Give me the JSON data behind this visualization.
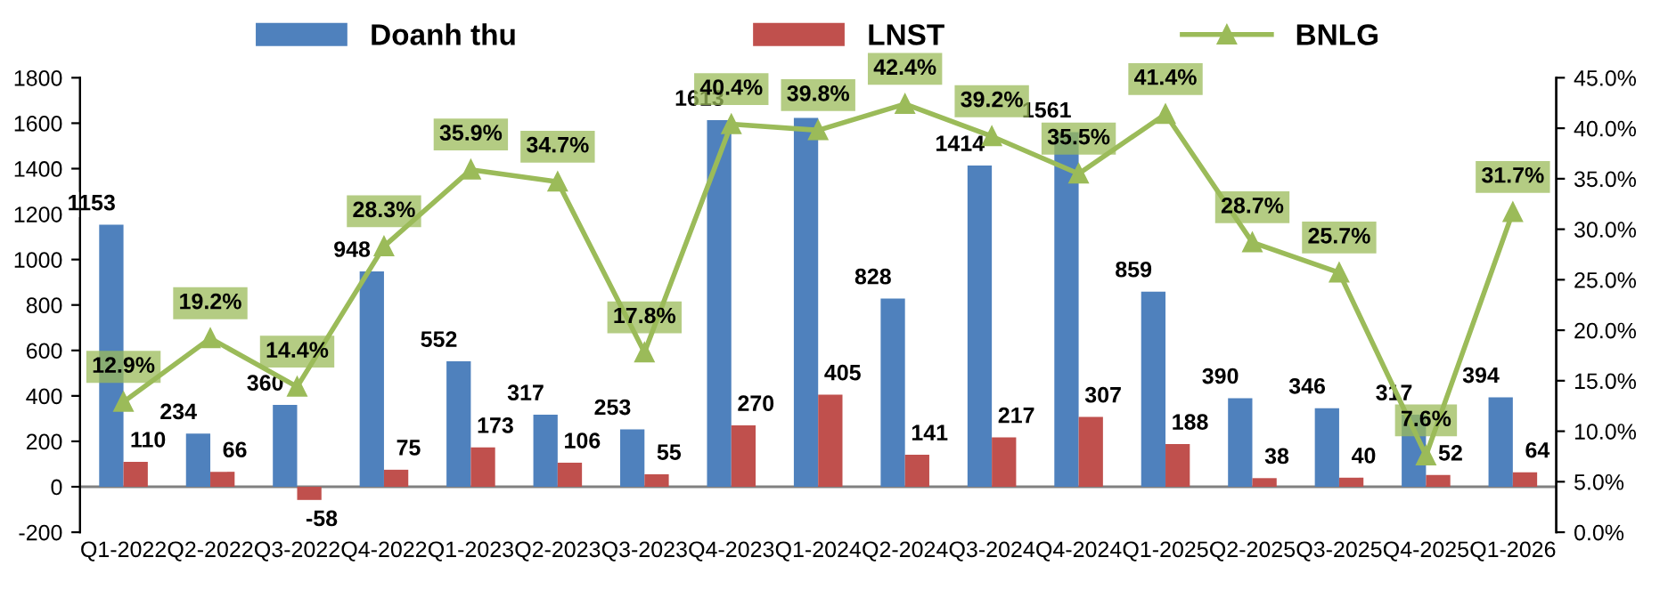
{
  "chart_data": {
    "type": "bar",
    "categories": [
      "Q1-2022",
      "Q2-2022",
      "Q3-2022",
      "Q4-2022",
      "Q1-2023",
      "Q2-2023",
      "Q3-2023",
      "Q4-2023",
      "Q1-2024",
      "Q2-2024",
      "Q3-2024",
      "Q4-2024",
      "Q1-2025",
      "Q2-2025",
      "Q3-2025",
      "Q4-2025",
      "Q1-2026"
    ],
    "series": [
      {
        "name": "Doanh thu",
        "color": "#4f81bd",
        "values": [
          1153,
          234,
          360,
          948,
          552,
          317,
          253,
          1613,
          1623,
          828,
          1414,
          1561,
          859,
          390,
          346,
          317,
          394
        ],
        "value_labels": [
          "1153",
          "234",
          "360",
          "948",
          "552",
          "317",
          "253",
          "1613",
          null,
          "828",
          "1414",
          "1561",
          "859",
          "390",
          "346",
          "317",
          "394"
        ]
      },
      {
        "name": "LNST",
        "color": "#c0504d",
        "values": [
          110,
          66,
          -58,
          75,
          173,
          106,
          55,
          270,
          405,
          141,
          217,
          307,
          188,
          38,
          40,
          52,
          64
        ]
      },
      {
        "name": "BNLG",
        "type": "line",
        "axis": "y2",
        "color": "#9bbb59",
        "marker": "triangle",
        "values": [
          12.9,
          19.2,
          14.4,
          28.3,
          35.9,
          34.7,
          17.8,
          40.4,
          39.8,
          42.4,
          39.2,
          35.5,
          41.4,
          28.7,
          25.7,
          7.6,
          31.7
        ],
        "value_labels": [
          "12.9%",
          "19.2%",
          "14.4%",
          "28.3%",
          "35.9%",
          "34.7%",
          "17.8%",
          "40.4%",
          "39.8%",
          "42.4%",
          "39.2%",
          "35.5%",
          "41.4%",
          "28.7%",
          "25.7%",
          "7.6%",
          "31.7%"
        ]
      }
    ],
    "data_labels": true,
    "ylim": [
      -200,
      1800
    ],
    "yticks": [
      -200,
      0,
      200,
      400,
      600,
      800,
      1000,
      1200,
      1400,
      1600,
      1800
    ],
    "y2lim": [
      0,
      45
    ],
    "y2ticks": [
      {
        "value": 0,
        "label": "0.0%"
      },
      {
        "value": 5,
        "label": "5.0%"
      },
      {
        "value": 10,
        "label": "10.0%"
      },
      {
        "value": 15,
        "label": "15.0%"
      },
      {
        "value": 20,
        "label": "20.0%"
      },
      {
        "value": 25,
        "label": "25.0%"
      },
      {
        "value": 30,
        "label": "30.0%"
      },
      {
        "value": 35,
        "label": "35.0%"
      },
      {
        "value": 40,
        "label": "40.0%"
      },
      {
        "value": 45,
        "label": "45.0%"
      }
    ],
    "grid": false,
    "legend": "top"
  }
}
